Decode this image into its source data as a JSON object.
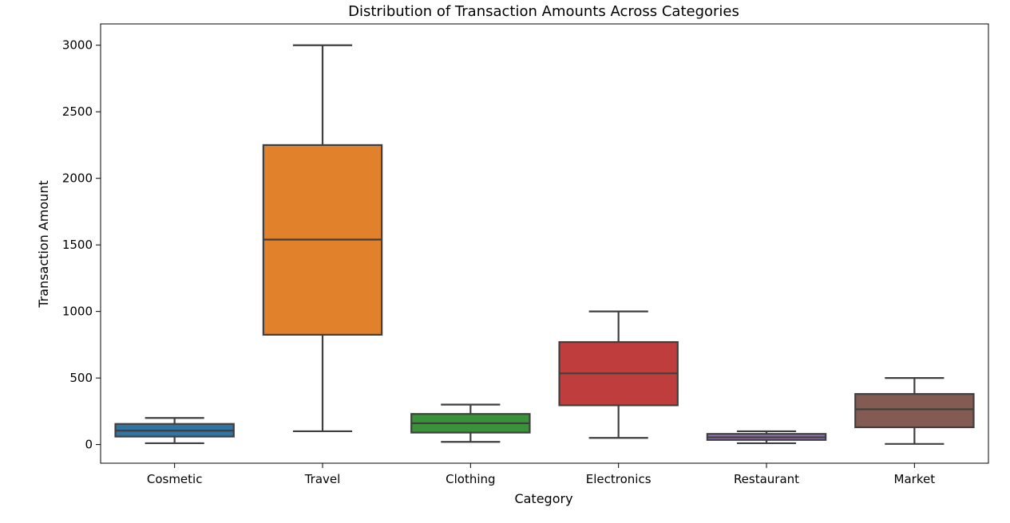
{
  "chart_data": {
    "type": "box",
    "title": "Distribution of Transaction Amounts Across Categories",
    "xlabel": "Category",
    "ylabel": "Transaction Amount",
    "ylim": [
      -140,
      3160
    ],
    "yticks": [
      0,
      500,
      1000,
      1500,
      2000,
      2500,
      3000
    ],
    "grid": false,
    "categories": [
      "Cosmetic",
      "Travel",
      "Clothing",
      "Electronics",
      "Restaurant",
      "Market"
    ],
    "boxes": [
      {
        "category": "Cosmetic",
        "min": 10,
        "q1": 60,
        "median": 105,
        "q3": 155,
        "max": 200,
        "color": "#3274a1"
      },
      {
        "category": "Travel",
        "min": 100,
        "q1": 825,
        "median": 1540,
        "q3": 2250,
        "max": 3000,
        "color": "#e1812c"
      },
      {
        "category": "Clothing",
        "min": 20,
        "q1": 90,
        "median": 160,
        "q3": 230,
        "max": 300,
        "color": "#3a923a"
      },
      {
        "category": "Electronics",
        "min": 50,
        "q1": 295,
        "median": 535,
        "q3": 770,
        "max": 1000,
        "color": "#c03d3e"
      },
      {
        "category": "Restaurant",
        "min": 10,
        "q1": 35,
        "median": 55,
        "q3": 80,
        "max": 100,
        "color": "#9372b2"
      },
      {
        "category": "Market",
        "min": 5,
        "q1": 130,
        "median": 265,
        "q3": 380,
        "max": 500,
        "color": "#845b53"
      }
    ]
  }
}
